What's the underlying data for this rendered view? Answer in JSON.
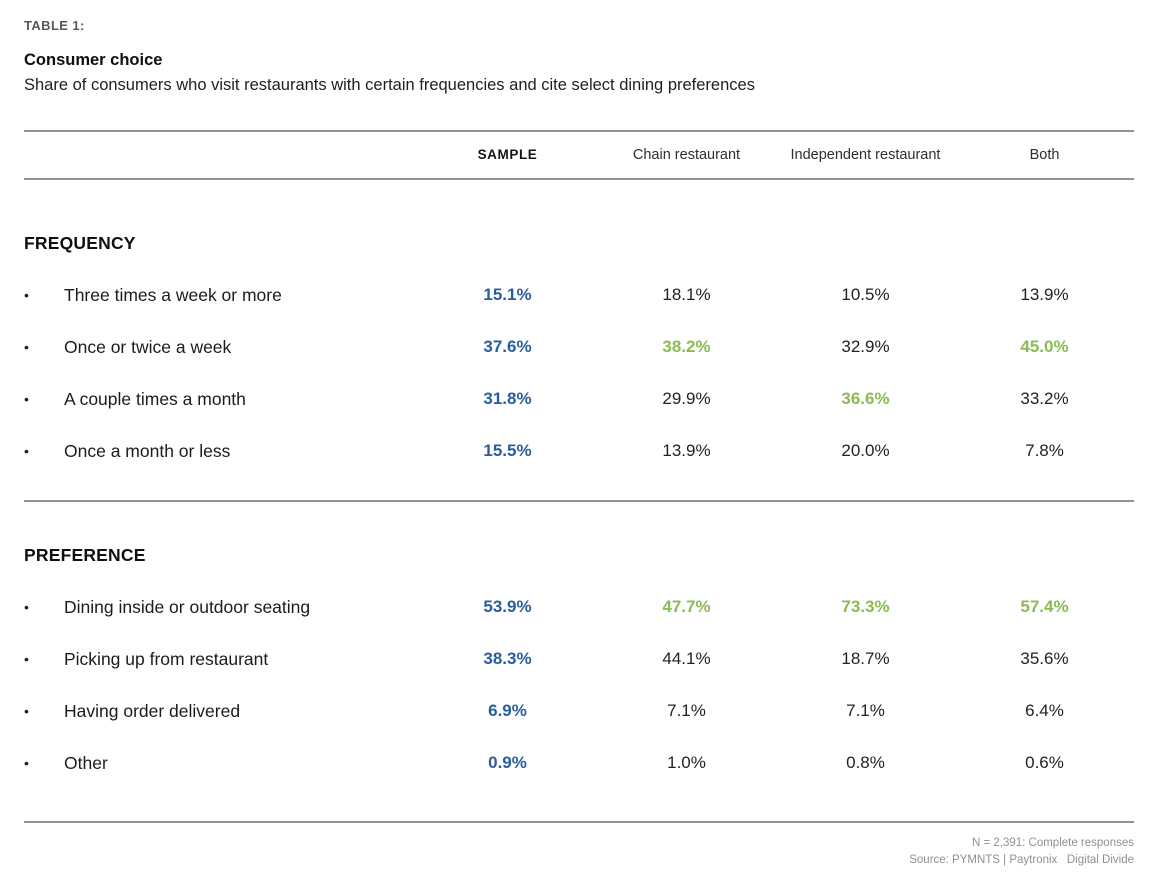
{
  "colors": {
    "highlight_blue": "#2a5d9c",
    "highlight_green": "#8cba55",
    "rule_gray": "#909294"
  },
  "header": {
    "eyebrow": "TABLE 1:",
    "title": "Consumer choice",
    "subtitle": "Share of consumers who visit restaurants with certain frequencies and cite select dining preferences"
  },
  "table": {
    "columns": [
      "SAMPLE",
      "Chain restaurant",
      "Independent restaurant",
      "Both"
    ],
    "sections": [
      {
        "label": "FREQUENCY",
        "rows": [
          {
            "label": "Three times a week or more",
            "values": [
              "15.1%",
              "18.1%",
              "10.5%",
              "13.9%"
            ],
            "styles": [
              "blue",
              "plain",
              "plain",
              "plain"
            ]
          },
          {
            "label": "Once or twice a week",
            "values": [
              "37.6%",
              "38.2%",
              "32.9%",
              "45.0%"
            ],
            "styles": [
              "blue",
              "green",
              "plain",
              "green"
            ]
          },
          {
            "label": "A couple times a month",
            "values": [
              "31.8%",
              "29.9%",
              "36.6%",
              "33.2%"
            ],
            "styles": [
              "blue",
              "plain",
              "green",
              "plain"
            ]
          },
          {
            "label": "Once a month or less",
            "values": [
              "15.5%",
              "13.9%",
              "20.0%",
              "7.8%"
            ],
            "styles": [
              "blue",
              "plain",
              "plain",
              "plain"
            ]
          }
        ]
      },
      {
        "label": "PREFERENCE",
        "rows": [
          {
            "label": "Dining inside or outdoor seating",
            "values": [
              "53.9%",
              "47.7%",
              "73.3%",
              "57.4%"
            ],
            "styles": [
              "blue",
              "green",
              "green",
              "green"
            ]
          },
          {
            "label": "Picking up from restaurant",
            "values": [
              "38.3%",
              "44.1%",
              "18.7%",
              "35.6%"
            ],
            "styles": [
              "blue",
              "plain",
              "plain",
              "plain"
            ]
          },
          {
            "label": "Having order delivered",
            "values": [
              "6.9%",
              "7.1%",
              "7.1%",
              "6.4%"
            ],
            "styles": [
              "blue",
              "plain",
              "plain",
              "plain"
            ]
          },
          {
            "label": "Other",
            "values": [
              "0.9%",
              "1.0%",
              "0.8%",
              "0.6%"
            ],
            "styles": [
              "blue",
              "plain",
              "plain",
              "plain"
            ]
          }
        ]
      }
    ]
  },
  "footer": {
    "line1": "N = 2,391: Complete responses",
    "line2": "Source: PYMNTS | Paytronix   Digital Divide"
  },
  "chart_data": {
    "type": "table",
    "title": "Consumer choice",
    "subtitle": "Share of consumers who visit restaurants with certain frequencies and cite select dining preferences",
    "columns": [
      "SAMPLE",
      "Chain restaurant",
      "Independent restaurant",
      "Both"
    ],
    "units": "percent",
    "sections": [
      {
        "name": "FREQUENCY",
        "rows": [
          {
            "label": "Three times a week or more",
            "values": [
              15.1,
              18.1,
              10.5,
              13.9
            ]
          },
          {
            "label": "Once or twice a week",
            "values": [
              37.6,
              38.2,
              32.9,
              45.0
            ]
          },
          {
            "label": "A couple times a month",
            "values": [
              31.8,
              29.9,
              36.6,
              33.2
            ]
          },
          {
            "label": "Once a month or less",
            "values": [
              15.5,
              13.9,
              20.0,
              7.8
            ]
          }
        ]
      },
      {
        "name": "PREFERENCE",
        "rows": [
          {
            "label": "Dining inside or outdoor seating",
            "values": [
              53.9,
              47.7,
              73.3,
              57.4
            ]
          },
          {
            "label": "Picking up from restaurant",
            "values": [
              38.3,
              44.1,
              18.7,
              35.6
            ]
          },
          {
            "label": "Having order delivered",
            "values": [
              6.9,
              7.1,
              7.1,
              6.4
            ]
          },
          {
            "label": "Other",
            "values": [
              0.9,
              1.0,
              0.8,
              0.6
            ]
          }
        ]
      }
    ],
    "highlight_legend": {
      "blue": "sample column emphasis",
      "green": "highest / notable segment value"
    },
    "notes": [
      "N = 2,391: Complete responses",
      "Source: PYMNTS | Paytronix  Digital Divide"
    ]
  }
}
